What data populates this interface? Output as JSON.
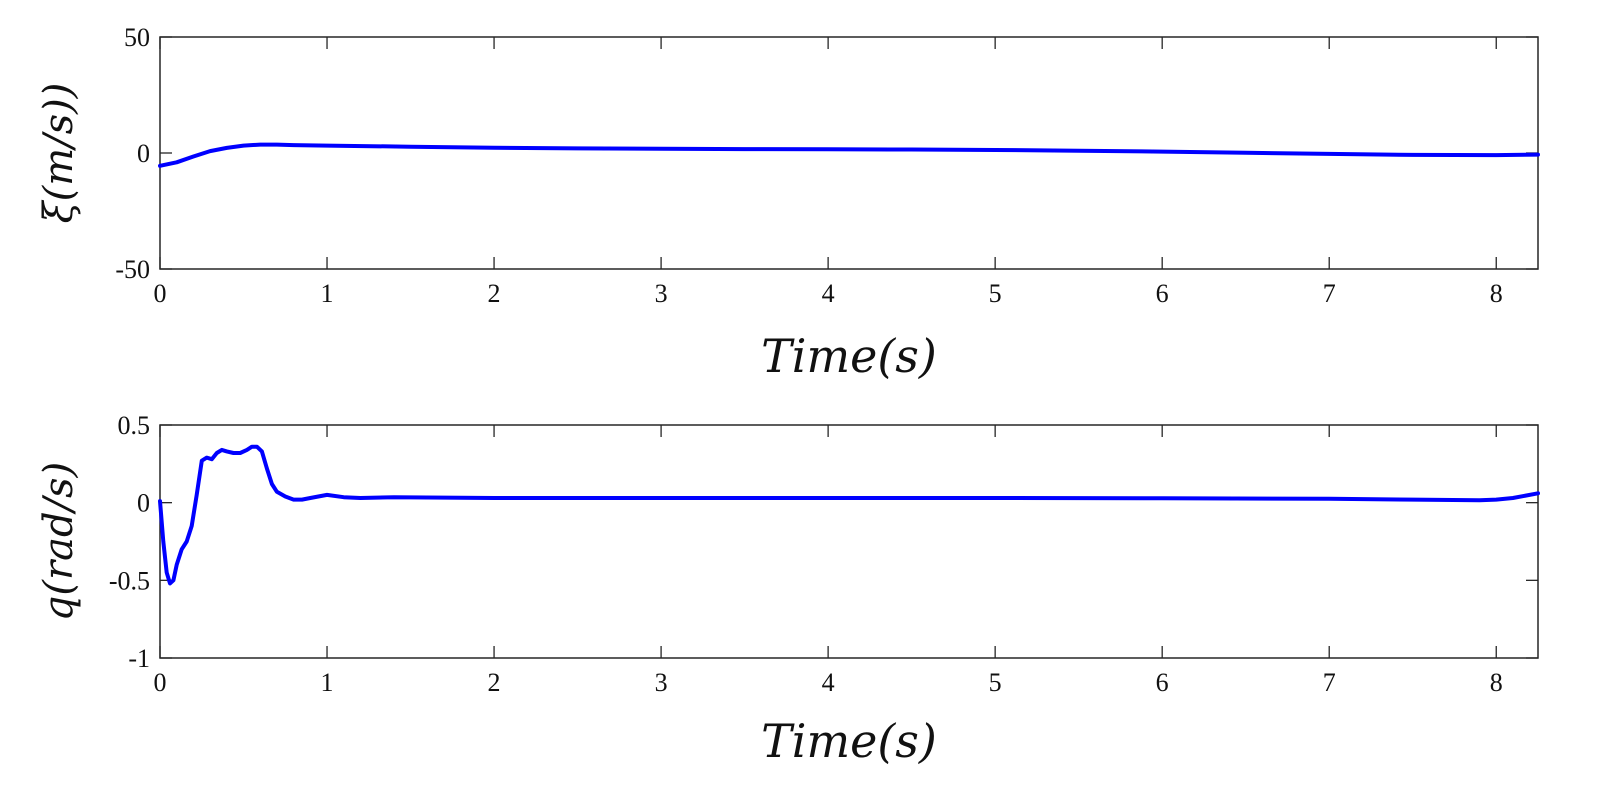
{
  "chart_data": [
    {
      "type": "line",
      "xlabel": "Time(s)",
      "ylabel": "ξ(m/s))",
      "xlim": [
        0,
        8.25
      ],
      "ylim": [
        -50,
        50
      ],
      "xticks": [
        "0",
        "1",
        "2",
        "3",
        "4",
        "5",
        "6",
        "7",
        "8"
      ],
      "yticks": [
        "-50",
        "0",
        "50"
      ],
      "grid": false,
      "color": "#0000ff",
      "series": [
        {
          "x": [
            0,
            0.1,
            0.2,
            0.3,
            0.4,
            0.5,
            0.6,
            0.7,
            0.8,
            1.0,
            1.5,
            2.0,
            2.5,
            3.0,
            3.5,
            4.0,
            4.5,
            5.0,
            5.5,
            6.0,
            6.5,
            7.0,
            7.5,
            8.0,
            8.25
          ],
          "y": [
            -5.5,
            -4,
            -1.5,
            0.8,
            2.2,
            3.2,
            3.6,
            3.6,
            3.4,
            3.2,
            2.7,
            2.3,
            2.0,
            1.8,
            1.7,
            1.6,
            1.5,
            1.3,
            1.0,
            0.6,
            0.1,
            -0.4,
            -0.8,
            -0.9,
            -0.7
          ]
        }
      ]
    },
    {
      "type": "line",
      "xlabel": "Time(s)",
      "ylabel": "q(rad/s)",
      "xlim": [
        0,
        8.25
      ],
      "ylim": [
        -1,
        0.5
      ],
      "xticks": [
        "0",
        "1",
        "2",
        "3",
        "4",
        "5",
        "6",
        "7",
        "8"
      ],
      "yticks": [
        "-1",
        "-0.5",
        "0",
        "0.5"
      ],
      "grid": false,
      "color": "#0000ff",
      "series": [
        {
          "x": [
            0,
            0.02,
            0.04,
            0.06,
            0.08,
            0.1,
            0.13,
            0.16,
            0.19,
            0.22,
            0.25,
            0.28,
            0.31,
            0.34,
            0.37,
            0.4,
            0.44,
            0.48,
            0.52,
            0.55,
            0.58,
            0.61,
            0.64,
            0.67,
            0.7,
            0.75,
            0.8,
            0.85,
            0.9,
            1.0,
            1.1,
            1.2,
            1.4,
            2.0,
            3.0,
            4.0,
            5.0,
            6.0,
            7.0,
            7.5,
            7.9,
            8.0,
            8.1,
            8.25
          ],
          "y": [
            0.01,
            -0.25,
            -0.45,
            -0.52,
            -0.5,
            -0.4,
            -0.3,
            -0.25,
            -0.15,
            0.05,
            0.27,
            0.29,
            0.28,
            0.32,
            0.34,
            0.33,
            0.32,
            0.32,
            0.34,
            0.36,
            0.36,
            0.33,
            0.22,
            0.12,
            0.07,
            0.04,
            0.02,
            0.02,
            0.03,
            0.05,
            0.035,
            0.03,
            0.035,
            0.03,
            0.03,
            0.03,
            0.03,
            0.028,
            0.025,
            0.02,
            0.015,
            0.02,
            0.03,
            0.06
          ]
        }
      ]
    }
  ]
}
